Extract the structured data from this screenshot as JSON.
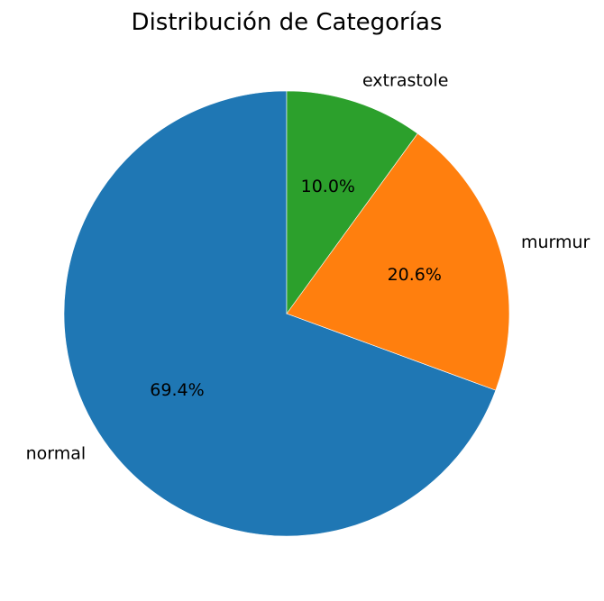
{
  "chart_data": {
    "type": "pie",
    "title": "Distribución de Categorías",
    "start_angle_deg": 90,
    "direction": "counterclockwise",
    "slices": [
      {
        "label": "normal",
        "percent": 69.4,
        "pct_text": "69.4%",
        "color": "#1f77b4"
      },
      {
        "label": "murmur",
        "percent": 20.6,
        "pct_text": "20.6%",
        "color": "#ff7f0e"
      },
      {
        "label": "extrastole",
        "percent": 10.0,
        "pct_text": "10.0%",
        "color": "#2ca02c"
      }
    ]
  }
}
